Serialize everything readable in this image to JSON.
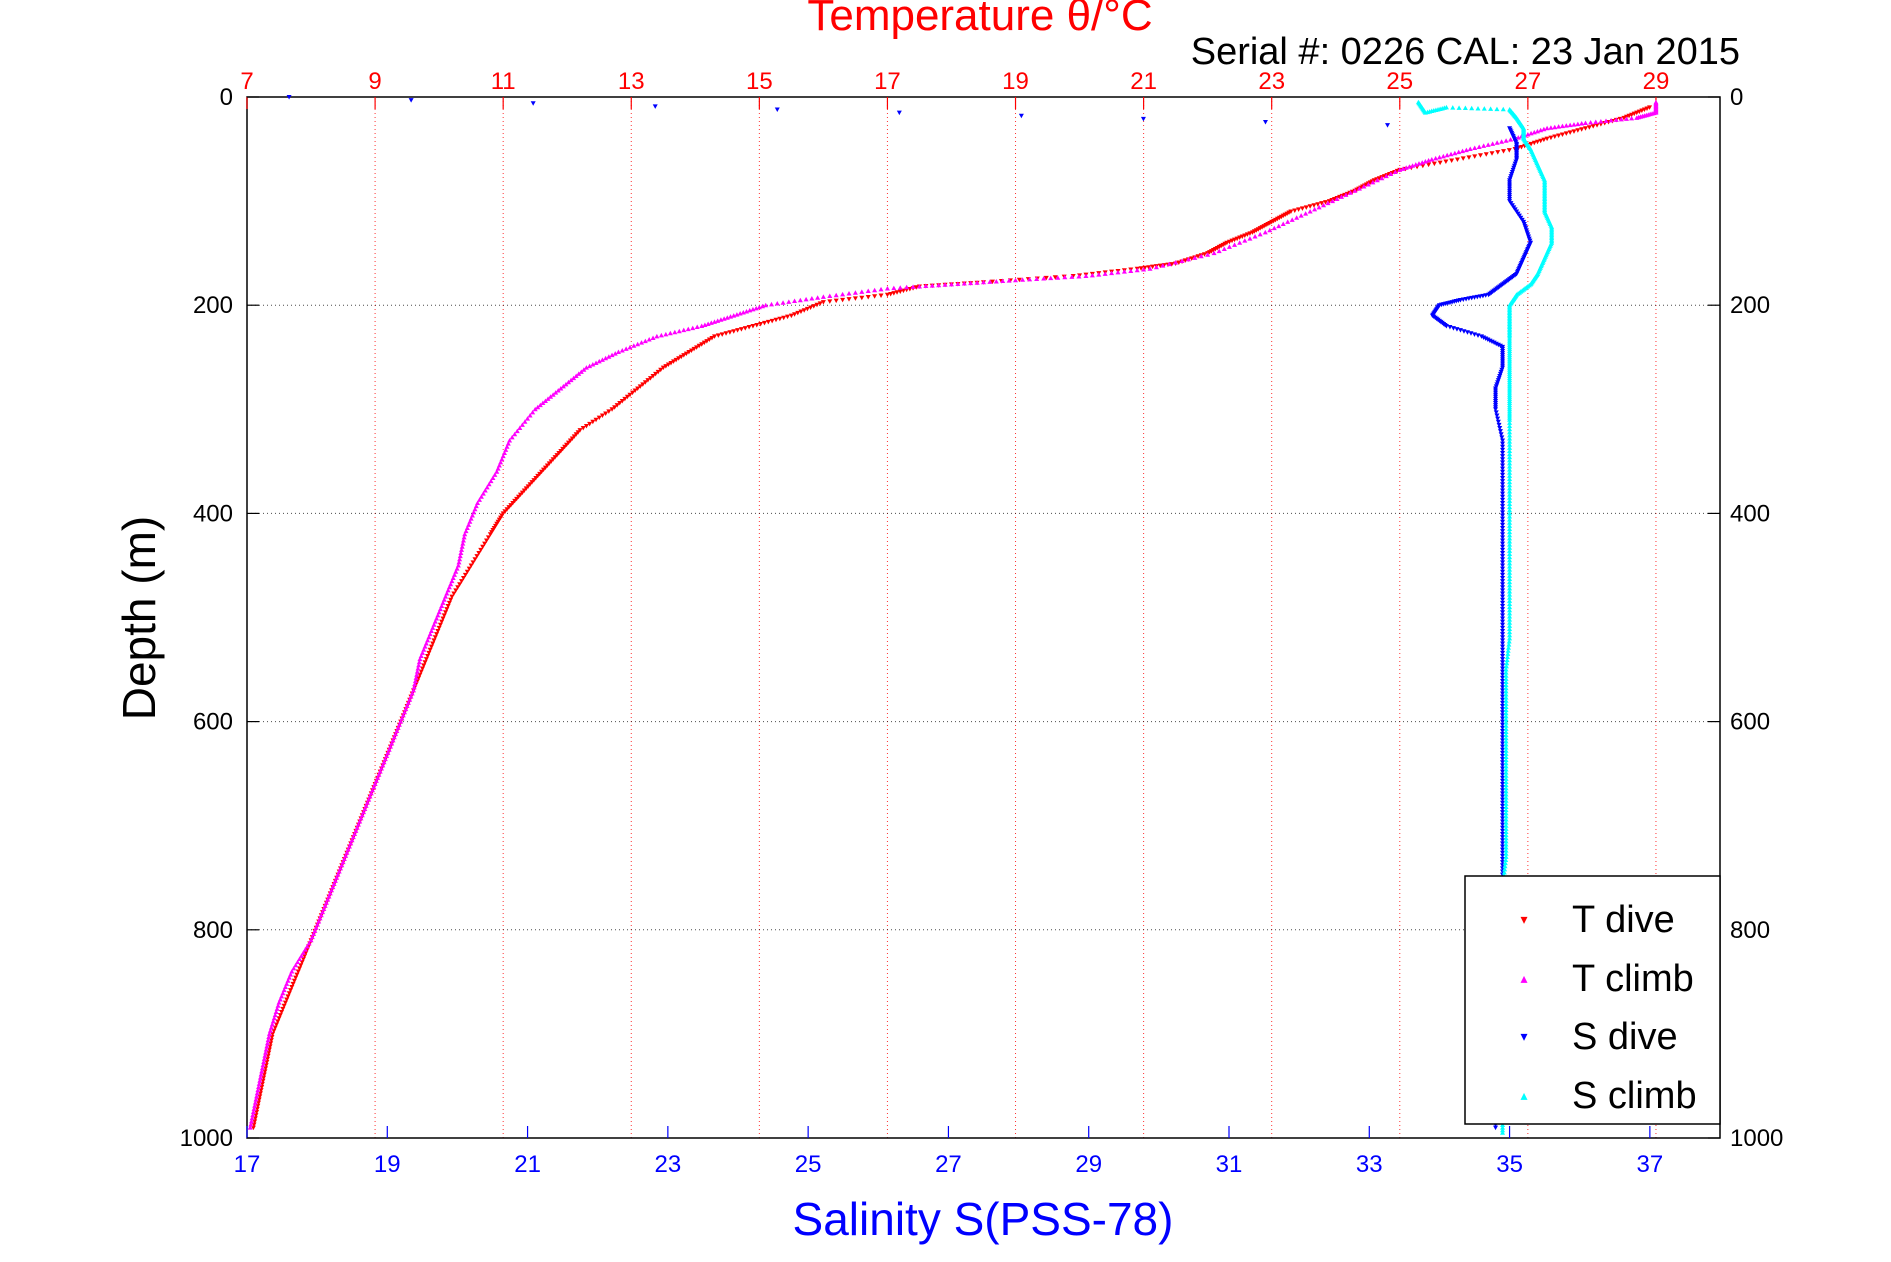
{
  "chart_data": {
    "type": "scatter",
    "title": "Temperature θ/°C",
    "subtitle": "Serial #: 0226  CAL: 23 Jan 2015",
    "xlabel": "Salinity S(PSS-78)",
    "ylabel": "Depth (m)",
    "x_bottom": {
      "label": "Salinity S(PSS-78)",
      "lim": [
        17,
        38
      ],
      "ticks": [
        "17",
        "19",
        "21",
        "23",
        "25",
        "27",
        "29",
        "31",
        "33",
        "35",
        "37"
      ],
      "color": "#0000ff"
    },
    "x_top": {
      "label": "Temperature θ/°C",
      "lim": [
        7,
        30
      ],
      "ticks": [
        "7",
        "9",
        "11",
        "13",
        "15",
        "17",
        "19",
        "21",
        "23",
        "25",
        "27",
        "29"
      ],
      "color": "#ff0000"
    },
    "y": {
      "label": "Depth (m)",
      "lim": [
        0,
        1000
      ],
      "reversed": true,
      "ticks": [
        "0",
        "200",
        "400",
        "600",
        "800",
        "1000"
      ]
    },
    "grid": true,
    "legend_position": "bottom-right",
    "series": [
      {
        "name": "T dive",
        "axis": "top",
        "color": "#ff0000",
        "marker": "triangle-down",
        "points": [
          [
            28.9,
            10
          ],
          [
            28.5,
            20
          ],
          [
            27.9,
            30
          ],
          [
            27.3,
            40
          ],
          [
            26.8,
            50
          ],
          [
            25.9,
            60
          ],
          [
            25.0,
            70
          ],
          [
            24.6,
            80
          ],
          [
            24.3,
            90
          ],
          [
            23.9,
            100
          ],
          [
            23.3,
            110
          ],
          [
            23.0,
            120
          ],
          [
            22.7,
            130
          ],
          [
            22.3,
            140
          ],
          [
            22.0,
            150
          ],
          [
            21.5,
            160
          ],
          [
            20.9,
            165
          ],
          [
            19.9,
            172
          ],
          [
            18.5,
            178
          ],
          [
            17.5,
            182
          ],
          [
            17.0,
            190
          ],
          [
            16.0,
            197
          ],
          [
            15.5,
            210
          ],
          [
            14.9,
            220
          ],
          [
            14.3,
            230
          ],
          [
            13.9,
            245
          ],
          [
            13.5,
            260
          ],
          [
            13.1,
            280
          ],
          [
            12.7,
            300
          ],
          [
            12.2,
            320
          ],
          [
            11.9,
            340
          ],
          [
            11.6,
            360
          ],
          [
            11.3,
            380
          ],
          [
            11.0,
            400
          ],
          [
            10.8,
            420
          ],
          [
            10.5,
            450
          ],
          [
            10.2,
            480
          ],
          [
            10.0,
            510
          ],
          [
            9.8,
            540
          ],
          [
            9.6,
            570
          ],
          [
            9.4,
            600
          ],
          [
            9.2,
            630
          ],
          [
            9.0,
            660
          ],
          [
            8.8,
            690
          ],
          [
            8.6,
            720
          ],
          [
            8.4,
            750
          ],
          [
            8.2,
            780
          ],
          [
            8.0,
            810
          ],
          [
            7.8,
            840
          ],
          [
            7.6,
            870
          ],
          [
            7.4,
            900
          ],
          [
            7.3,
            930
          ],
          [
            7.2,
            960
          ],
          [
            7.1,
            990
          ]
        ]
      },
      {
        "name": "T climb",
        "axis": "top",
        "color": "#ff00ff",
        "marker": "triangle-up",
        "points": [
          [
            29.0,
            5
          ],
          [
            29.0,
            15
          ],
          [
            28.7,
            20
          ],
          [
            27.9,
            25
          ],
          [
            27.3,
            30
          ],
          [
            26.8,
            40
          ],
          [
            26.1,
            50
          ],
          [
            25.5,
            60
          ],
          [
            25.0,
            70
          ],
          [
            24.3,
            90
          ],
          [
            23.6,
            110
          ],
          [
            22.9,
            130
          ],
          [
            22.1,
            150
          ],
          [
            21.1,
            165
          ],
          [
            20.1,
            172
          ],
          [
            19.0,
            176
          ],
          [
            18.0,
            180
          ],
          [
            17.0,
            184
          ],
          [
            16.0,
            192
          ],
          [
            15.1,
            200
          ],
          [
            14.6,
            210
          ],
          [
            14.1,
            220
          ],
          [
            13.4,
            230
          ],
          [
            12.8,
            245
          ],
          [
            12.3,
            260
          ],
          [
            11.9,
            280
          ],
          [
            11.5,
            300
          ],
          [
            11.1,
            330
          ],
          [
            10.9,
            360
          ],
          [
            10.6,
            390
          ],
          [
            10.4,
            420
          ],
          [
            10.3,
            450
          ],
          [
            10.1,
            480
          ],
          [
            9.9,
            510
          ],
          [
            9.7,
            540
          ],
          [
            9.6,
            570
          ],
          [
            9.4,
            600
          ],
          [
            9.2,
            630
          ],
          [
            9.0,
            660
          ],
          [
            8.8,
            690
          ],
          [
            8.6,
            720
          ],
          [
            8.4,
            750
          ],
          [
            8.2,
            780
          ],
          [
            8.0,
            810
          ],
          [
            7.7,
            840
          ],
          [
            7.5,
            870
          ],
          [
            7.35,
            900
          ],
          [
            7.25,
            930
          ],
          [
            7.15,
            960
          ],
          [
            7.05,
            990
          ]
        ]
      },
      {
        "name": "S dive",
        "axis": "bottom",
        "color": "#0000ff",
        "marker": "triangle-down",
        "points": [
          [
            17.6,
            0
          ],
          [
            35.0,
            30
          ],
          [
            35.1,
            45
          ],
          [
            35.1,
            60
          ],
          [
            35.0,
            80
          ],
          [
            35.0,
            100
          ],
          [
            35.2,
            120
          ],
          [
            35.3,
            140
          ],
          [
            35.2,
            155
          ],
          [
            35.1,
            170
          ],
          [
            34.9,
            180
          ],
          [
            34.7,
            190
          ],
          [
            34.3,
            195
          ],
          [
            34.0,
            200
          ],
          [
            33.9,
            210
          ],
          [
            34.1,
            220
          ],
          [
            34.6,
            230
          ],
          [
            34.9,
            240
          ],
          [
            34.9,
            260
          ],
          [
            34.8,
            280
          ],
          [
            34.8,
            300
          ],
          [
            34.9,
            330
          ],
          [
            34.9,
            360
          ],
          [
            34.9,
            390
          ],
          [
            34.9,
            420
          ],
          [
            34.9,
            450
          ],
          [
            34.9,
            480
          ],
          [
            34.9,
            510
          ],
          [
            34.9,
            540
          ],
          [
            34.9,
            570
          ],
          [
            34.9,
            600
          ],
          [
            34.9,
            630
          ],
          [
            34.9,
            660
          ],
          [
            34.9,
            690
          ],
          [
            34.9,
            720
          ],
          [
            34.9,
            750
          ],
          [
            34.9,
            780
          ],
          [
            34.9,
            810
          ],
          [
            34.85,
            840
          ],
          [
            34.85,
            870
          ],
          [
            34.85,
            900
          ],
          [
            34.8,
            930
          ],
          [
            34.8,
            960
          ],
          [
            34.8,
            990
          ]
        ]
      },
      {
        "name": "S climb",
        "axis": "bottom",
        "color": "#00ffff",
        "marker": "triangle-up",
        "points": [
          [
            33.7,
            5
          ],
          [
            33.8,
            15
          ],
          [
            34.1,
            10
          ],
          [
            35.0,
            12
          ],
          [
            35.1,
            20
          ],
          [
            35.2,
            30
          ],
          [
            35.2,
            40
          ],
          [
            35.3,
            50
          ],
          [
            35.4,
            65
          ],
          [
            35.5,
            80
          ],
          [
            35.5,
            95
          ],
          [
            35.5,
            110
          ],
          [
            35.6,
            125
          ],
          [
            35.6,
            140
          ],
          [
            35.5,
            155
          ],
          [
            35.4,
            170
          ],
          [
            35.3,
            180
          ],
          [
            35.1,
            190
          ],
          [
            35.0,
            200
          ],
          [
            35.0,
            215
          ],
          [
            35.0,
            230
          ],
          [
            35.0,
            250
          ],
          [
            35.0,
            270
          ],
          [
            35.0,
            290
          ],
          [
            35.0,
            310
          ],
          [
            35.0,
            340
          ],
          [
            35.0,
            370
          ],
          [
            35.0,
            400
          ],
          [
            35.0,
            430
          ],
          [
            35.0,
            460
          ],
          [
            35.0,
            490
          ],
          [
            35.0,
            520
          ],
          [
            34.95,
            550
          ],
          [
            34.95,
            580
          ],
          [
            34.95,
            610
          ],
          [
            34.95,
            640
          ],
          [
            34.95,
            670
          ],
          [
            34.95,
            700
          ],
          [
            34.95,
            730
          ],
          [
            34.9,
            760
          ],
          [
            34.9,
            790
          ],
          [
            34.9,
            820
          ],
          [
            34.9,
            850
          ],
          [
            34.9,
            880
          ],
          [
            34.9,
            910
          ],
          [
            34.9,
            940
          ],
          [
            34.9,
            970
          ],
          [
            34.9,
            995
          ]
        ]
      }
    ]
  },
  "legend": [
    {
      "label": "T dive",
      "color": "#ff0000",
      "symbol": "▾"
    },
    {
      "label": "T climb",
      "color": "#ff00ff",
      "symbol": "▴"
    },
    {
      "label": "S dive",
      "color": "#0000ff",
      "symbol": "▾"
    },
    {
      "label": "S climb",
      "color": "#00ffff",
      "symbol": "▴"
    }
  ]
}
